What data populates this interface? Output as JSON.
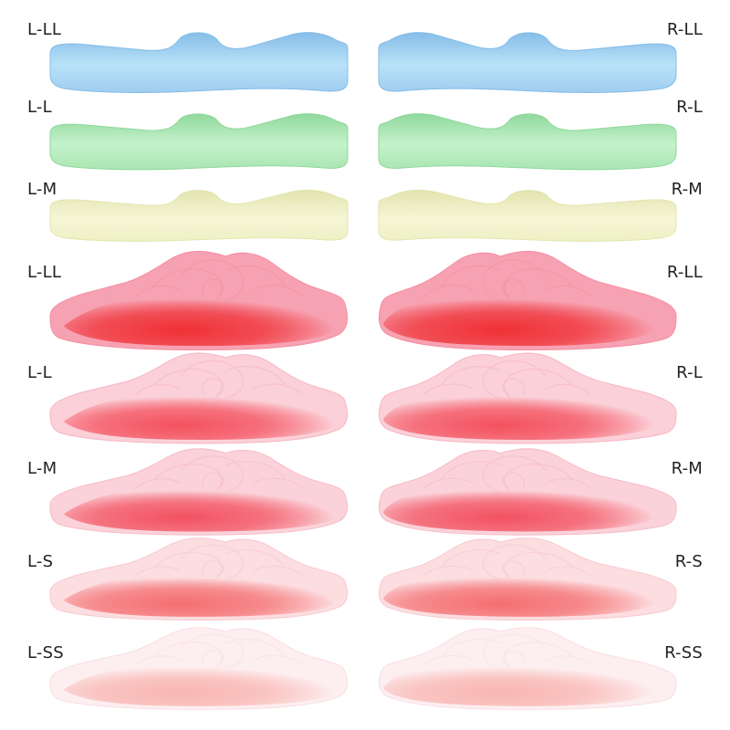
{
  "rows": [
    {
      "left_label": "L-LL",
      "right_label": "R-LL",
      "kind": "silicone",
      "top_color": "#9fcdf0",
      "bottom_color": "#b9e2f8",
      "edge_color": "#86bde8"
    },
    {
      "left_label": "L-L",
      "right_label": "R-L",
      "kind": "silicone",
      "top_color": "#a9e6b2",
      "bottom_color": "#c4f2cb",
      "edge_color": "#90d89c"
    },
    {
      "left_label": "L-M",
      "right_label": "R-M",
      "kind": "silicone",
      "top_color": "#eef0c4",
      "bottom_color": "#f6f6d6",
      "edge_color": "#e2e4ae"
    },
    {
      "left_label": "L-LL",
      "right_label": "R-LL",
      "kind": "rose",
      "fill_color": "#f7a2b2",
      "core_color": "#ef2a2e",
      "edge_color": "#f48fa3"
    },
    {
      "left_label": "L-L",
      "right_label": "R-L",
      "kind": "rose",
      "fill_color": "#fbd0d8",
      "core_color": "#f34a57",
      "edge_color": "#f6b6c2"
    },
    {
      "left_label": "L-M",
      "right_label": "R-M",
      "kind": "rose",
      "fill_color": "#fbd2d9",
      "core_color": "#f24a5a",
      "edge_color": "#f6b9c4"
    },
    {
      "left_label": "L-S",
      "right_label": "R-S",
      "kind": "rose",
      "fill_color": "#fcdde0",
      "core_color": "#f4686a",
      "edge_color": "#f7c7cc"
    },
    {
      "left_label": "L-SS",
      "right_label": "R-SS",
      "kind": "rose",
      "fill_color": "#fdeef0",
      "core_color": "#f8b3ae",
      "edge_color": "#f8dde0"
    }
  ]
}
